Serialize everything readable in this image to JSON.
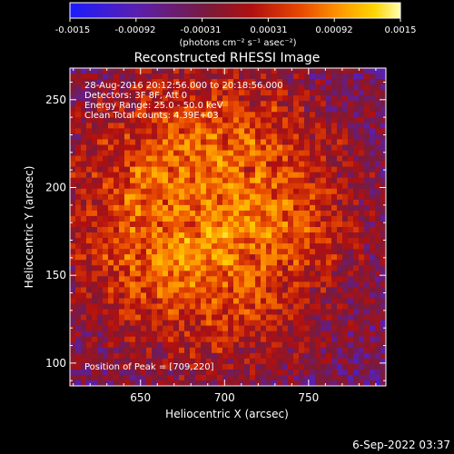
{
  "colorbar": {
    "ticks": [
      "-0.0015",
      "-0.00092",
      "-0.00031",
      "0.00031",
      "0.00092",
      "0.0015"
    ],
    "units": "(photons cm⁻² s⁻¹ asec⁻²)",
    "colors": [
      "#1c1cff",
      "#5a1fb0",
      "#7a1a3a",
      "#b01010",
      "#e84a00",
      "#ff9a00",
      "#ffd400",
      "#ffffb0"
    ]
  },
  "chart_data": {
    "type": "heatmap",
    "title": "Reconstructed RHESSI Image",
    "xlabel": "Heliocentric X (arcsec)",
    "ylabel": "Heliocentric Y (arcsec)",
    "xlim": [
      608,
      796
    ],
    "ylim": [
      87,
      268
    ],
    "xticks": [
      650,
      700,
      750
    ],
    "yticks": [
      100,
      150,
      200,
      250
    ],
    "value_range": [
      -0.0015,
      0.0015
    ],
    "annotations": [
      "28-Aug-2016 20:12:56.000 to 20:18:56.000",
      "Detectors: 3F 8F, Att 0",
      "Energy Range: 25.0 - 50.0 keV",
      "Clean     Total counts: 4.39E+03"
    ],
    "peak_label": "Position of Peak = [709,220]",
    "peak": [
      709,
      220
    ]
  },
  "footer": {
    "timestamp": "6-Sep-2022 03:37"
  }
}
